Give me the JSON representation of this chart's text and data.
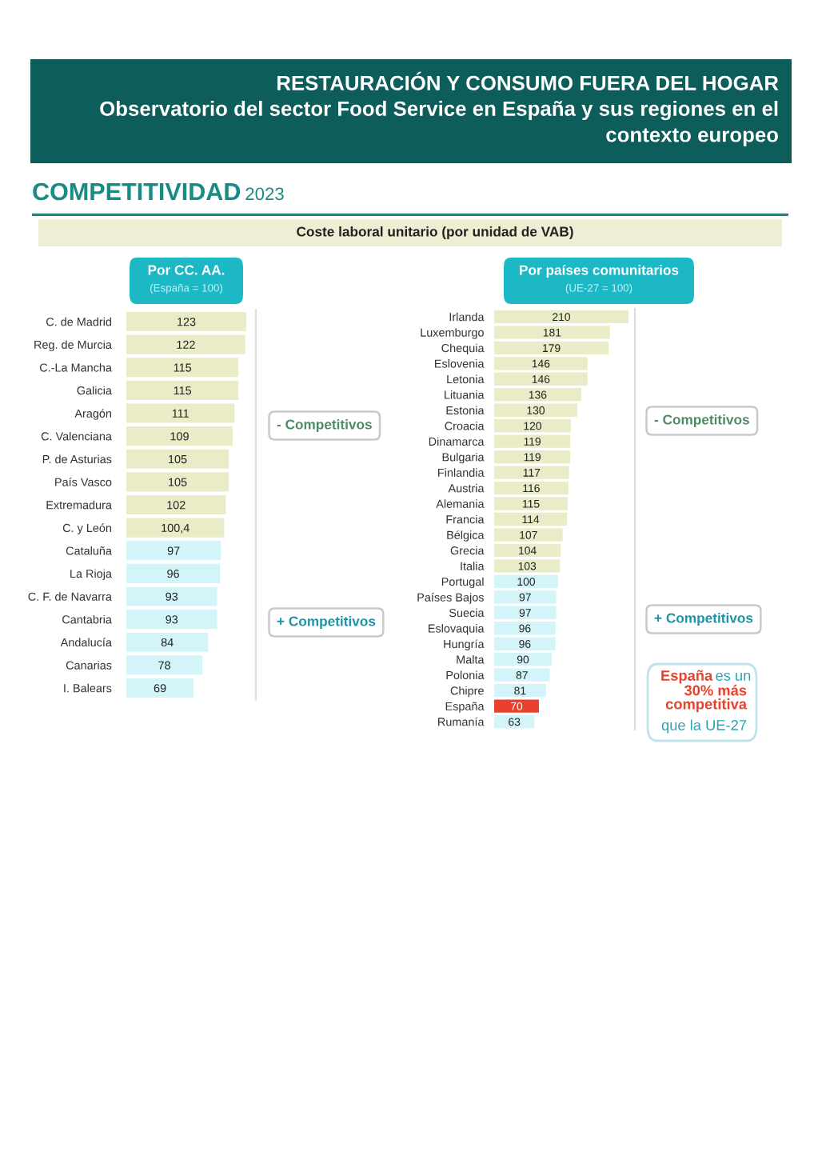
{
  "chart_data": [
    {
      "type": "bar",
      "orientation": "horizontal",
      "title": "Por CC. AA.",
      "subtitle": "(España = 100)",
      "categories": [
        "C. de Madrid",
        "Reg. de Murcia",
        "C.-La Mancha",
        "Galicia",
        "Aragón",
        "C. Valenciana",
        "P. de Asturias",
        "País Vasco",
        "Extremadura",
        "C. y León",
        "Cataluña",
        "La Rioja",
        "C. F. de Navarra",
        "Cantabria",
        "Andalucía",
        "Canarias",
        "I. Balears"
      ],
      "values": [
        123,
        122,
        115,
        115,
        111,
        109,
        105,
        105,
        102,
        100.4,
        97,
        96,
        93,
        93,
        84,
        78,
        69
      ],
      "value_labels": [
        "123",
        "122",
        "115",
        "115",
        "111",
        "109",
        "105",
        "105",
        "102",
        "100,4",
        "97",
        "96",
        "93",
        "93",
        "84",
        "78",
        "69"
      ],
      "colors": [
        "#e9ecc7",
        "#e9ecc7",
        "#e9ecc7",
        "#e9ecc7",
        "#e9ecc7",
        "#e9ecc7",
        "#e9ecc7",
        "#e9ecc7",
        "#e9ecc7",
        "#e9ecc7",
        "#d3f5fa",
        "#d3f5fa",
        "#d3f5fa",
        "#d3f5fa",
        "#d3f5fa",
        "#d3f5fa",
        "#d3f5fa"
      ],
      "annotations": [
        "RESTAURACIÓN Y CONSUMO FUERA DEL HOGAR",
        "Observatorio del sector Food Service en España y sus regiones en el contexto europeo",
        "COMPETITIVIDAD",
        "2023",
        "Coste laboral unitario (por unidad de VAB)",
        "- Competitivos",
        "+ Competitivos"
      ]
    },
    {
      "type": "bar",
      "orientation": "horizontal",
      "title": "Por países comunitarios",
      "subtitle": "(UE-27 = 100)",
      "categories": [
        "Irlanda",
        "Luxemburgo",
        "Chequia",
        "Eslovenia",
        "Letonia",
        "Lituania",
        "Estonia",
        "Croacia",
        "Dinamarca",
        "Bulgaria",
        "Finlandia",
        "Austria",
        "Alemania",
        "Francia",
        "Bélgica",
        "Grecia",
        "Italia",
        "Portugal",
        "Países Bajos",
        "Suecia",
        "Eslovaquia",
        "Hungría",
        "Malta",
        "Polonia",
        "Chipre",
        "España",
        "Rumanía"
      ],
      "values": [
        210,
        181,
        179,
        146,
        146,
        136,
        130,
        120,
        119,
        119,
        117,
        116,
        115,
        114,
        107,
        104,
        103,
        100,
        97,
        97,
        96,
        96,
        90,
        87,
        81,
        70,
        63
      ],
      "data_labels": true,
      "colors": [
        "#e9ecc7",
        "#e9ecc7",
        "#e9ecc7",
        "#e9ecc7",
        "#e9ecc7",
        "#e9ecc7",
        "#e9ecc7",
        "#e9ecc7",
        "#e9ecc7",
        "#e9ecc7",
        "#e9ecc7",
        "#e9ecc7",
        "#e9ecc7",
        "#e9ecc7",
        "#e9ecc7",
        "#e9ecc7",
        "#e9ecc7",
        "#d3f5fa",
        "#d3f5fa",
        "#d3f5fa",
        "#d3f5fa",
        "#d3f5fa",
        "#d3f5fa",
        "#d3f5fa",
        "#d3f5fa",
        "#e8412c",
        "#d3f5fa"
      ],
      "annotations": [
        "- Competitivos",
        "+ Competitivos",
        "España",
        "es un",
        "30% más competitiva",
        "que la UE-27"
      ]
    }
  ]
}
